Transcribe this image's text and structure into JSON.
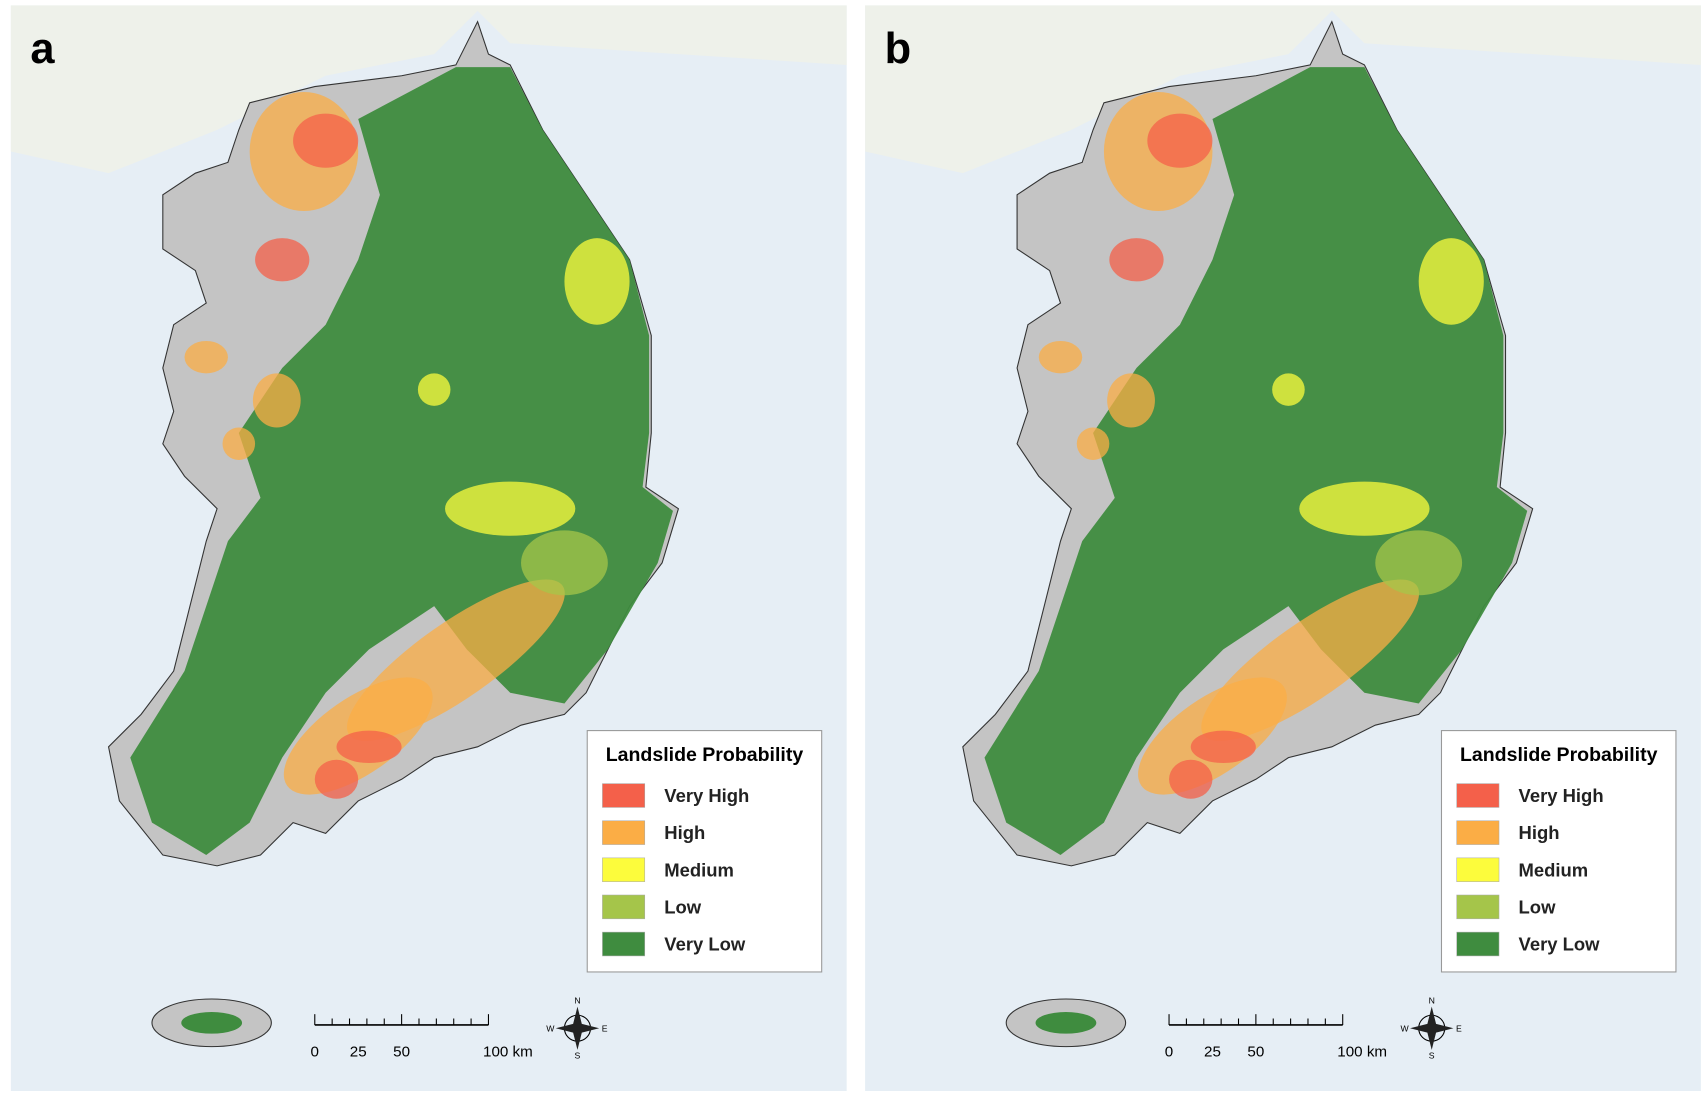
{
  "panels": [
    {
      "label": "a",
      "legend": {
        "title": "Landslide Probability",
        "items": [
          {
            "label": "Very High",
            "color": "#f4604a"
          },
          {
            "label": "High",
            "color": "#fbad45"
          },
          {
            "label": "Medium",
            "color": "#fcfc3c"
          },
          {
            "label": "Low",
            "color": "#a5c54a"
          },
          {
            "label": "Very Low",
            "color": "#3f8c3f"
          }
        ]
      },
      "scale_bar": {
        "labels": [
          "0",
          "25",
          "50",
          "100 km"
        ]
      },
      "compass": {
        "n": "N",
        "e": "E",
        "s": "S",
        "w": "W"
      }
    },
    {
      "label": "b",
      "legend": {
        "title": "Landslide Probability",
        "items": [
          {
            "label": "Very High",
            "color": "#f4604a"
          },
          {
            "label": "High",
            "color": "#fbad45"
          },
          {
            "label": "Medium",
            "color": "#fcfc3c"
          },
          {
            "label": "Low",
            "color": "#a5c54a"
          },
          {
            "label": "Very Low",
            "color": "#3f8c3f"
          }
        ]
      },
      "scale_bar": {
        "labels": [
          "0",
          "25",
          "50",
          "100 km"
        ]
      },
      "compass": {
        "n": "N",
        "e": "E",
        "s": "S",
        "w": "W"
      }
    }
  ]
}
